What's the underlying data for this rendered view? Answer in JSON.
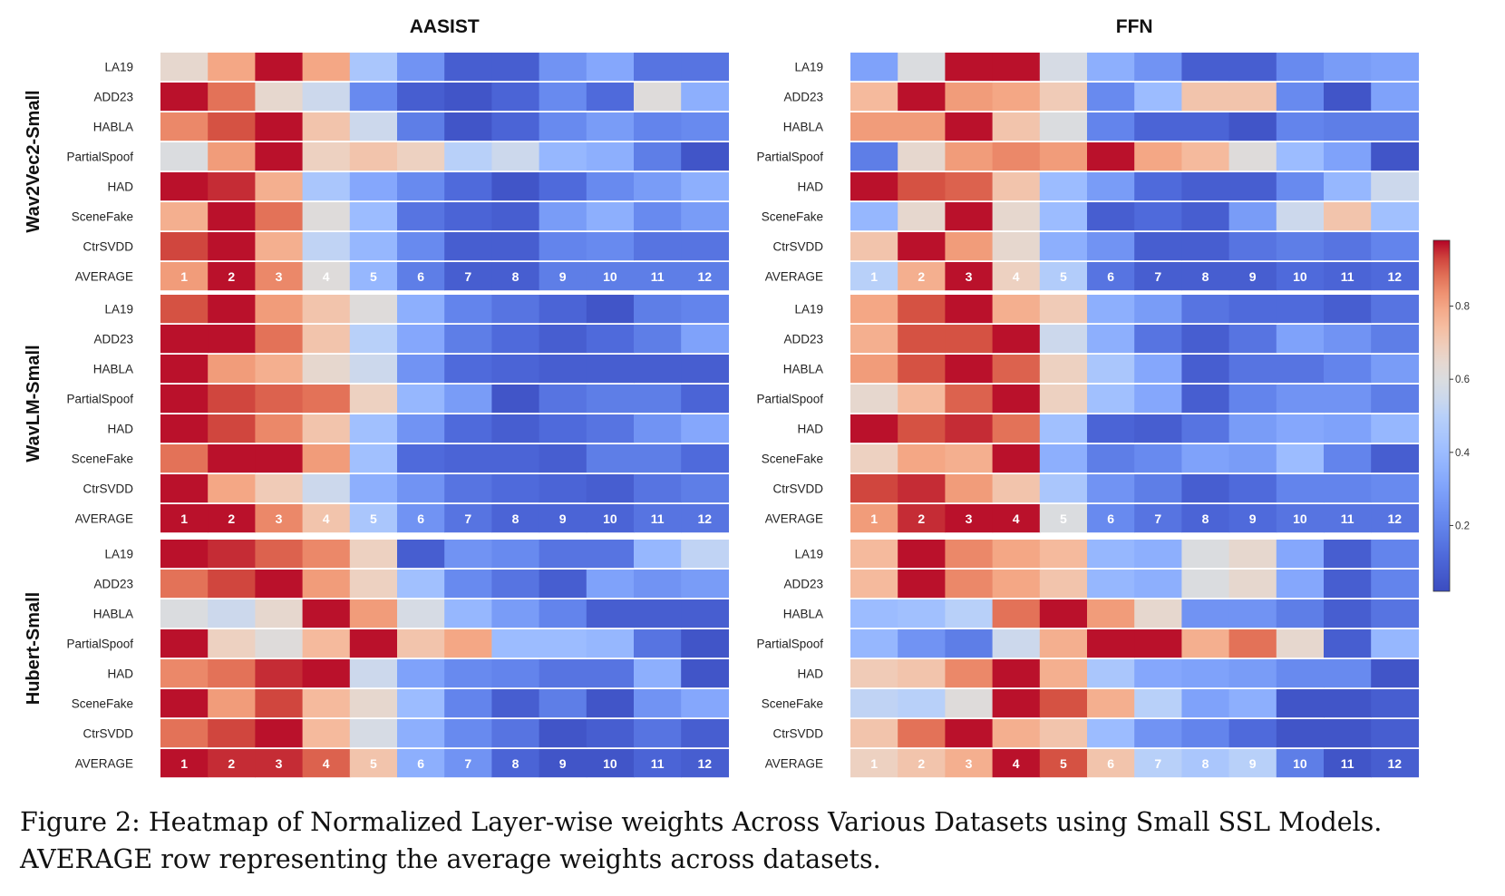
{
  "chart_data": {
    "type": "heatmap",
    "column_titles": [
      "AASIST",
      "FFN"
    ],
    "row_titles": [
      "Wav2Vec2-Small",
      "WavLM-Small",
      "Hubert-Small"
    ],
    "row_labels": [
      "LA19",
      "ADD23",
      "HABLA",
      "PartialSpoof",
      "HAD",
      "SceneFake",
      "CtrSVDD",
      "AVERAGE"
    ],
    "x_labels": [
      "1",
      "2",
      "3",
      "4",
      "5",
      "6",
      "7",
      "8",
      "9",
      "10",
      "11",
      "12"
    ],
    "colorbar": {
      "colormap": "coolwarm",
      "range": [
        0.02,
        0.98
      ],
      "ticks": [
        0.2,
        0.4,
        0.6,
        0.8
      ],
      "tick_labels": [
        "0.2",
        "0.4",
        "0.6",
        "0.8"
      ]
    },
    "panels": [
      {
        "row_title": "Wav2Vec2-Small",
        "column_title": "AASIST",
        "values": [
          [
            0.65,
            0.8,
            0.97,
            0.8,
            0.45,
            0.25,
            0.08,
            0.08,
            0.25,
            0.32,
            0.15,
            0.15
          ],
          [
            0.97,
            0.88,
            0.65,
            0.55,
            0.22,
            0.08,
            0.05,
            0.1,
            0.22,
            0.12,
            0.62,
            0.35
          ],
          [
            0.85,
            0.92,
            0.97,
            0.72,
            0.55,
            0.18,
            0.05,
            0.1,
            0.22,
            0.28,
            0.2,
            0.22
          ],
          [
            0.6,
            0.82,
            0.97,
            0.68,
            0.72,
            0.68,
            0.5,
            0.55,
            0.38,
            0.35,
            0.18,
            0.05
          ],
          [
            0.97,
            0.95,
            0.78,
            0.45,
            0.32,
            0.22,
            0.12,
            0.05,
            0.12,
            0.22,
            0.28,
            0.35
          ],
          [
            0.78,
            0.97,
            0.88,
            0.62,
            0.4,
            0.15,
            0.1,
            0.08,
            0.28,
            0.35,
            0.22,
            0.28
          ],
          [
            0.93,
            0.97,
            0.78,
            0.52,
            0.38,
            0.22,
            0.08,
            0.08,
            0.2,
            0.22,
            0.15,
            0.15
          ],
          [
            0.82,
            0.97,
            0.85,
            0.62,
            0.38,
            0.18,
            0.08,
            0.08,
            0.18,
            0.18,
            0.18,
            0.18
          ]
        ]
      },
      {
        "row_title": "Wav2Vec2-Small",
        "column_title": "FFN",
        "values": [
          [
            0.3,
            0.6,
            0.97,
            0.97,
            0.58,
            0.35,
            0.25,
            0.08,
            0.08,
            0.22,
            0.28,
            0.3
          ],
          [
            0.75,
            0.97,
            0.82,
            0.8,
            0.7,
            0.22,
            0.4,
            0.72,
            0.72,
            0.22,
            0.05,
            0.3
          ],
          [
            0.82,
            0.82,
            0.97,
            0.72,
            0.6,
            0.2,
            0.1,
            0.1,
            0.05,
            0.2,
            0.18,
            0.18
          ],
          [
            0.18,
            0.65,
            0.82,
            0.85,
            0.82,
            0.97,
            0.8,
            0.75,
            0.62,
            0.4,
            0.3,
            0.05
          ],
          [
            0.97,
            0.92,
            0.9,
            0.72,
            0.4,
            0.28,
            0.12,
            0.08,
            0.08,
            0.22,
            0.38,
            0.55
          ],
          [
            0.38,
            0.65,
            0.97,
            0.65,
            0.4,
            0.08,
            0.12,
            0.08,
            0.28,
            0.55,
            0.72,
            0.42
          ],
          [
            0.72,
            0.97,
            0.82,
            0.65,
            0.35,
            0.25,
            0.08,
            0.08,
            0.15,
            0.18,
            0.15,
            0.2
          ],
          [
            0.5,
            0.78,
            0.97,
            0.68,
            0.48,
            0.15,
            0.08,
            0.08,
            0.08,
            0.12,
            0.1,
            0.12
          ]
        ]
      },
      {
        "row_title": "WavLM-Small",
        "column_title": "AASIST",
        "values": [
          [
            0.92,
            0.97,
            0.82,
            0.72,
            0.62,
            0.35,
            0.2,
            0.15,
            0.1,
            0.05,
            0.18,
            0.2
          ],
          [
            0.97,
            0.97,
            0.88,
            0.72,
            0.5,
            0.32,
            0.18,
            0.12,
            0.08,
            0.12,
            0.18,
            0.3
          ],
          [
            0.97,
            0.82,
            0.78,
            0.65,
            0.55,
            0.25,
            0.12,
            0.1,
            0.08,
            0.08,
            0.08,
            0.08
          ],
          [
            0.97,
            0.93,
            0.9,
            0.88,
            0.68,
            0.38,
            0.28,
            0.05,
            0.15,
            0.18,
            0.18,
            0.1
          ],
          [
            0.97,
            0.93,
            0.85,
            0.72,
            0.42,
            0.25,
            0.12,
            0.08,
            0.12,
            0.15,
            0.25,
            0.32
          ],
          [
            0.88,
            0.97,
            0.97,
            0.82,
            0.42,
            0.12,
            0.1,
            0.1,
            0.08,
            0.18,
            0.18,
            0.12
          ],
          [
            0.97,
            0.8,
            0.7,
            0.55,
            0.35,
            0.25,
            0.15,
            0.12,
            0.1,
            0.08,
            0.15,
            0.18
          ],
          [
            0.97,
            0.97,
            0.85,
            0.72,
            0.45,
            0.25,
            0.15,
            0.1,
            0.1,
            0.1,
            0.15,
            0.15
          ]
        ]
      },
      {
        "row_title": "WavLM-Small",
        "column_title": "FFN",
        "values": [
          [
            0.8,
            0.92,
            0.97,
            0.78,
            0.7,
            0.35,
            0.28,
            0.15,
            0.12,
            0.12,
            0.08,
            0.15
          ],
          [
            0.78,
            0.92,
            0.92,
            0.97,
            0.55,
            0.35,
            0.15,
            0.08,
            0.15,
            0.3,
            0.25,
            0.18
          ],
          [
            0.82,
            0.92,
            0.97,
            0.9,
            0.68,
            0.45,
            0.32,
            0.08,
            0.15,
            0.15,
            0.2,
            0.28
          ],
          [
            0.65,
            0.75,
            0.9,
            0.97,
            0.68,
            0.42,
            0.32,
            0.08,
            0.2,
            0.25,
            0.25,
            0.18
          ],
          [
            0.97,
            0.92,
            0.95,
            0.88,
            0.42,
            0.1,
            0.08,
            0.15,
            0.28,
            0.32,
            0.3,
            0.38
          ],
          [
            0.68,
            0.8,
            0.78,
            0.97,
            0.35,
            0.18,
            0.22,
            0.3,
            0.28,
            0.4,
            0.2,
            0.08
          ],
          [
            0.93,
            0.95,
            0.82,
            0.72,
            0.45,
            0.25,
            0.18,
            0.08,
            0.12,
            0.2,
            0.2,
            0.22
          ],
          [
            0.82,
            0.95,
            0.97,
            0.97,
            0.6,
            0.22,
            0.15,
            0.1,
            0.12,
            0.15,
            0.15,
            0.15
          ]
        ]
      },
      {
        "row_title": "Hubert-Small",
        "column_title": "AASIST",
        "values": [
          [
            0.97,
            0.95,
            0.9,
            0.85,
            0.68,
            0.08,
            0.25,
            0.22,
            0.15,
            0.15,
            0.38,
            0.52
          ],
          [
            0.88,
            0.93,
            0.97,
            0.82,
            0.68,
            0.42,
            0.22,
            0.15,
            0.08,
            0.3,
            0.25,
            0.28
          ],
          [
            0.6,
            0.55,
            0.65,
            0.97,
            0.82,
            0.58,
            0.38,
            0.28,
            0.2,
            0.08,
            0.08,
            0.08
          ],
          [
            0.97,
            0.68,
            0.62,
            0.75,
            0.97,
            0.72,
            0.8,
            0.4,
            0.4,
            0.38,
            0.15,
            0.05
          ],
          [
            0.85,
            0.88,
            0.95,
            0.97,
            0.55,
            0.3,
            0.22,
            0.2,
            0.15,
            0.15,
            0.35,
            0.05
          ],
          [
            0.97,
            0.82,
            0.93,
            0.75,
            0.65,
            0.4,
            0.2,
            0.08,
            0.18,
            0.05,
            0.25,
            0.32
          ],
          [
            0.88,
            0.93,
            0.97,
            0.75,
            0.58,
            0.35,
            0.22,
            0.15,
            0.05,
            0.08,
            0.15,
            0.08
          ],
          [
            0.97,
            0.95,
            0.95,
            0.9,
            0.72,
            0.35,
            0.25,
            0.1,
            0.05,
            0.05,
            0.1,
            0.08
          ]
        ]
      },
      {
        "row_title": "Hubert-Small",
        "column_title": "FFN",
        "values": [
          [
            0.75,
            0.97,
            0.85,
            0.8,
            0.75,
            0.38,
            0.35,
            0.6,
            0.65,
            0.32,
            0.08,
            0.2
          ],
          [
            0.75,
            0.97,
            0.85,
            0.8,
            0.72,
            0.38,
            0.35,
            0.6,
            0.65,
            0.32,
            0.08,
            0.2
          ],
          [
            0.4,
            0.42,
            0.5,
            0.88,
            0.97,
            0.82,
            0.65,
            0.25,
            0.25,
            0.18,
            0.08,
            0.15
          ],
          [
            0.38,
            0.25,
            0.18,
            0.55,
            0.78,
            0.97,
            0.97,
            0.78,
            0.88,
            0.65,
            0.08,
            0.38
          ],
          [
            0.7,
            0.72,
            0.85,
            0.97,
            0.78,
            0.45,
            0.32,
            0.3,
            0.28,
            0.22,
            0.22,
            0.05
          ],
          [
            0.52,
            0.5,
            0.62,
            0.97,
            0.92,
            0.78,
            0.5,
            0.3,
            0.35,
            0.05,
            0.05,
            0.08
          ],
          [
            0.72,
            0.88,
            0.97,
            0.78,
            0.72,
            0.4,
            0.25,
            0.2,
            0.12,
            0.05,
            0.05,
            0.08
          ],
          [
            0.68,
            0.72,
            0.78,
            0.97,
            0.92,
            0.72,
            0.5,
            0.45,
            0.5,
            0.18,
            0.05,
            0.08
          ]
        ]
      }
    ]
  },
  "caption": "Figure 2: Heatmap of Normalized Layer-wise weights Across Various Datasets using Small SSL Models. AVERAGE row representing the average weights across datasets."
}
